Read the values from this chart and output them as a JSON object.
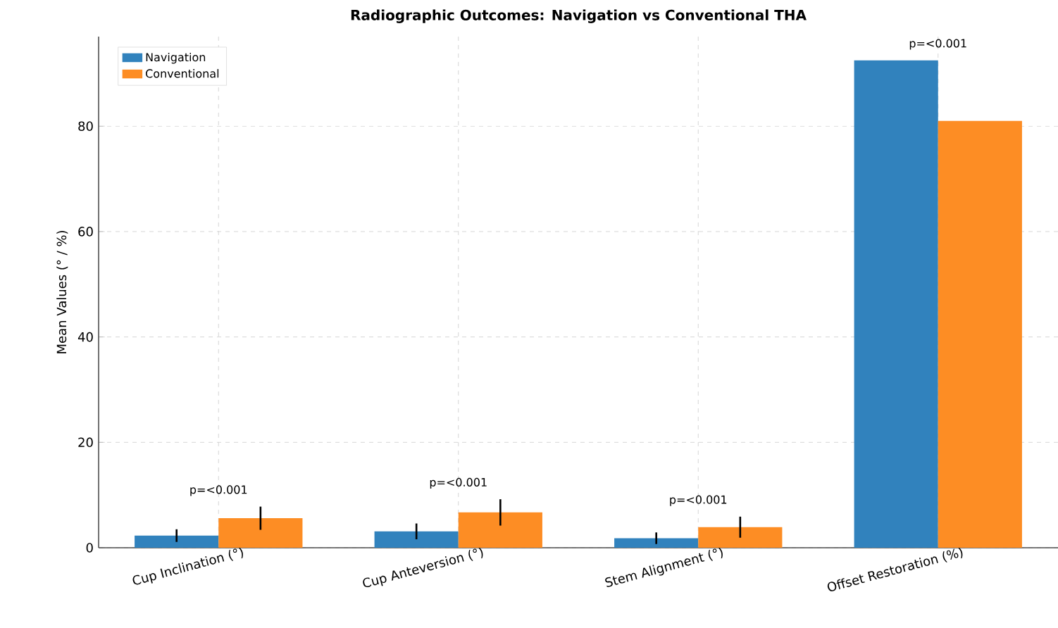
{
  "chart_data": {
    "type": "bar",
    "title": "Radiographic Outcomes: Navigation vs Conventional THA",
    "ylabel": "Mean Values (° / %)",
    "categories": [
      "Cup Inclination (°)",
      "Cup Anteversion (°)",
      "Stem Alignment (°)",
      "Offset Restoration (%)"
    ],
    "series": [
      {
        "name": "Navigation",
        "color": "#3182bd",
        "values": [
          2.3,
          3.1,
          1.8,
          92.5
        ],
        "errors": [
          1.2,
          1.5,
          1.1,
          null
        ]
      },
      {
        "name": "Conventional",
        "color": "#fd8d24",
        "values": [
          5.6,
          6.7,
          3.9,
          81
        ],
        "errors": [
          2.2,
          2.5,
          2.0,
          null
        ]
      }
    ],
    "ylim": [
      0,
      97
    ],
    "yticks": [
      0,
      20,
      40,
      60,
      80
    ],
    "grid": true,
    "legend": "top left",
    "annotations": [
      "p=<0.001",
      "p=<0.001",
      "p=<0.001",
      "p=<0.001"
    ]
  }
}
